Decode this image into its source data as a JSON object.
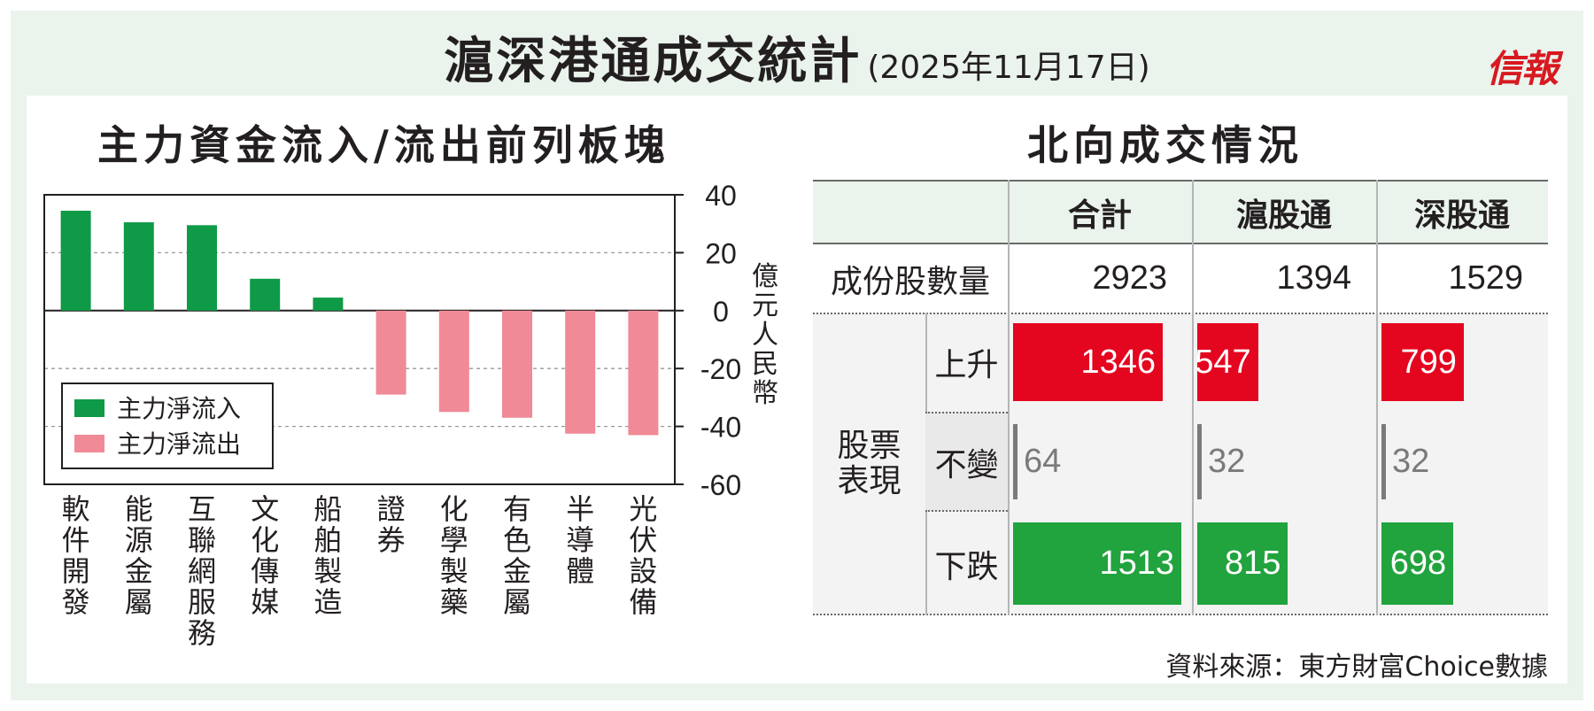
{
  "header": {
    "title": "滬深港通成交統計",
    "date": "(2025年11月17日)",
    "logo_text": "信報"
  },
  "chart_data": {
    "type": "bar",
    "title": "主力資金流入/流出前列板塊",
    "categories": [
      "軟件開發",
      "能源金屬",
      "互聯網服務",
      "文化傳媒",
      "船舶製造",
      "證券",
      "化學製藥",
      "有色金屬",
      "半導體",
      "光伏設備"
    ],
    "values": [
      34.5,
      30.5,
      29.5,
      11,
      4.5,
      -29,
      -35,
      -37,
      -42.5,
      -43
    ],
    "ylabel": "億元人民幣",
    "ylim": [
      -60,
      40
    ],
    "yticks": [
      40,
      20,
      0,
      -20,
      -40,
      -60
    ],
    "ytick_labels": [
      "40",
      "20",
      "0",
      "-20",
      "-40",
      "-60"
    ],
    "grid": "dashed at 20, -20, -40",
    "axis_side": "right",
    "legend": {
      "placement": "bottom-left",
      "items": [
        {
          "label": "主力淨流入",
          "color": "#0f9a48"
        },
        {
          "label": "主力淨流出",
          "color": "#ef8a96"
        }
      ]
    },
    "colors": {
      "inflow": "#0f9a48",
      "outflow": "#ef8a96"
    }
  },
  "table": {
    "title": "北向成交情況",
    "columns": [
      "合計",
      "滬股通",
      "深股通"
    ],
    "constituent": {
      "label": "成份股數量",
      "values": [
        "2923",
        "1394",
        "1529"
      ]
    },
    "performance_label": "股票\n表現",
    "rows": [
      {
        "label": "上升",
        "values": [
          1346,
          547,
          799
        ],
        "display": [
          "1346",
          "547",
          "799"
        ],
        "color": "#e4051f"
      },
      {
        "label": "不變",
        "values": [
          64,
          32,
          32
        ],
        "display": [
          "64",
          "32",
          "32"
        ],
        "color": "#7a7a7a"
      },
      {
        "label": "下跌",
        "values": [
          1513,
          815,
          698
        ],
        "display": [
          "1513",
          "815",
          "698"
        ],
        "color": "#21a33d"
      }
    ]
  },
  "source": "資料來源：東方財富Choice數據"
}
